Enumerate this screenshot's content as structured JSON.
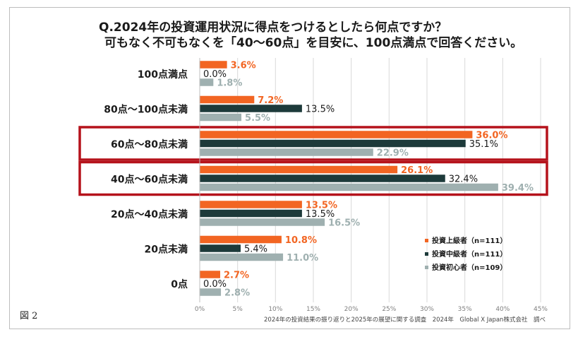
{
  "figure_label": "図 2",
  "source_note": "2024年の投資結果の振り返りと2025年の展望に関する調査　2024年　Global X Japan株式会社　調べ",
  "colors": {
    "series1": "#f26522",
    "series2": "#1d3a3a",
    "series3": "#9fb0b0",
    "highlight": "#b5121b",
    "grid": "#d9d9d9",
    "axis_text": "#7f7f7f"
  },
  "chart_data": {
    "type": "bar",
    "orientation": "horizontal",
    "title_line1": "Q.2024年の投資運用状況に得点をつけるとしたら何点ですか？",
    "title_line2": "可もなく不可もなくを「40～60点」を目安に、100点満点で回答ください。",
    "categories": [
      "100点満点",
      "80点～100点未満",
      "60点～80点未満",
      "40点～60点未満",
      "20点～40点未満",
      "20点未満",
      "0点"
    ],
    "series": [
      {
        "name": "投資上級者（n=111）",
        "values": [
          3.6,
          7.2,
          36.0,
          26.1,
          13.5,
          10.8,
          2.7
        ],
        "labels": [
          "3.6%",
          "7.2%",
          "36.0%",
          "26.1%",
          "13.5%",
          "10.8%",
          "2.7%"
        ]
      },
      {
        "name": "投資中級者（n=111）",
        "values": [
          0.0,
          13.5,
          35.1,
          32.4,
          13.5,
          5.4,
          0.0
        ],
        "labels": [
          "0.0%",
          "13.5%",
          "35.1%",
          "32.4%",
          "13.5%",
          "5.4%",
          "0.0%"
        ]
      },
      {
        "name": "投資初心者（n=109）",
        "values": [
          1.8,
          5.5,
          22.9,
          39.4,
          16.5,
          11.0,
          2.8
        ],
        "labels": [
          "1.8%",
          "5.5%",
          "22.9%",
          "39.4%",
          "16.5%",
          "11.0%",
          "2.8%"
        ]
      }
    ],
    "xlim": [
      0,
      45
    ],
    "xticks": [
      0,
      5,
      10,
      15,
      20,
      25,
      30,
      35,
      40,
      45
    ],
    "xtick_labels": [
      "0%",
      "5%",
      "10%",
      "15%",
      "20%",
      "25%",
      "30%",
      "35%",
      "40%",
      "45%"
    ],
    "highlighted_categories": [
      "60点～80点未満",
      "40点～60点未満"
    ],
    "grid": true,
    "legend_position": "lower-right"
  }
}
